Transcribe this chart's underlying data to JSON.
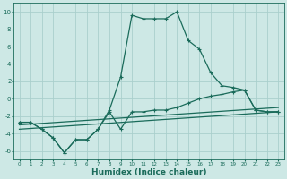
{
  "xlabel": "Humidex (Indice chaleur)",
  "background_color": "#cde8e5",
  "grid_color": "#aacfcc",
  "line_color": "#1a6b5a",
  "xlim": [
    -0.5,
    23.5
  ],
  "ylim": [
    -7,
    11
  ],
  "xticks": [
    0,
    1,
    2,
    3,
    4,
    5,
    6,
    7,
    8,
    9,
    10,
    11,
    12,
    13,
    14,
    15,
    16,
    17,
    18,
    19,
    20,
    21,
    22,
    23
  ],
  "yticks": [
    -6,
    -4,
    -2,
    0,
    2,
    4,
    6,
    8,
    10
  ],
  "line1_x": [
    0,
    1,
    2,
    3,
    4,
    5,
    6,
    7,
    8,
    9,
    10,
    11,
    12,
    13,
    14,
    15,
    16,
    17,
    18,
    19,
    20,
    21,
    22,
    23
  ],
  "line1_y": [
    -2.7,
    -2.7,
    -3.5,
    -4.5,
    -6.2,
    -4.7,
    -4.7,
    -3.5,
    -1.3,
    2.5,
    9.6,
    9.2,
    9.2,
    9.2,
    10.0,
    6.7,
    5.7,
    3.0,
    1.5,
    1.3,
    1.0,
    -1.3,
    -1.5,
    -1.5
  ],
  "line2_x": [
    0,
    1,
    2,
    3,
    4,
    5,
    6,
    7,
    8,
    9,
    10,
    11,
    12,
    13,
    14,
    15,
    16,
    17,
    18,
    19,
    20,
    21,
    22,
    23
  ],
  "line2_y": [
    -2.7,
    -2.7,
    -3.5,
    -4.5,
    -6.2,
    -4.7,
    -4.7,
    -3.5,
    -1.5,
    -3.5,
    -1.5,
    -1.5,
    -1.3,
    -1.3,
    -1.0,
    -0.5,
    0.0,
    0.3,
    0.5,
    0.8,
    1.0,
    -1.3,
    -1.5,
    -1.5
  ],
  "line3_x": [
    0,
    23
  ],
  "line3_y": [
    -3.0,
    -1.0
  ],
  "line4_x": [
    0,
    23
  ],
  "line4_y": [
    -3.5,
    -1.5
  ]
}
